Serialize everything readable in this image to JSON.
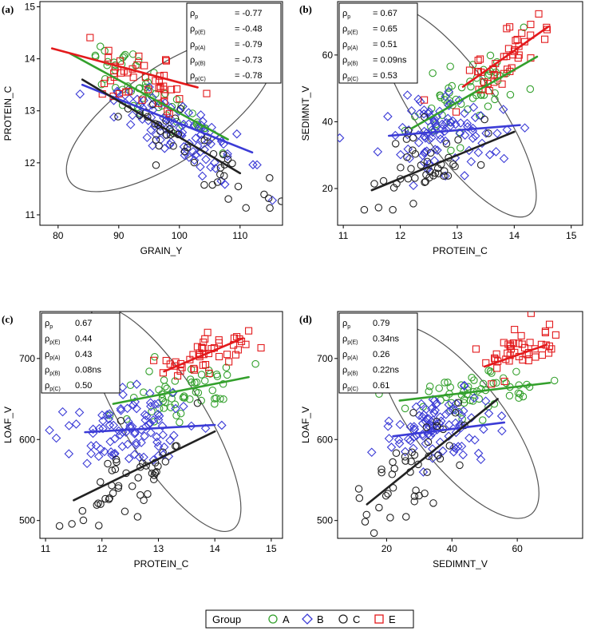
{
  "legend": {
    "title": "Group",
    "items": [
      {
        "label": "A",
        "color": "#33a02c",
        "marker": "circle"
      },
      {
        "label": "B",
        "color": "#3b3bd6",
        "marker": "diamond"
      },
      {
        "label": "C",
        "color": "#222222",
        "marker": "circle"
      },
      {
        "label": "E",
        "color": "#e31a1c",
        "marker": "square"
      }
    ]
  },
  "colors": {
    "A": "#33a02c",
    "B": "#3b3bd6",
    "C": "#222222",
    "E": "#e31a1c",
    "ellipse": "#555555"
  },
  "chart_data": [
    {
      "panel": "(a)",
      "type": "scatter",
      "xlabel": "GRAIN_Y",
      "ylabel": "PROTEIN_C",
      "xlim": [
        77,
        117
      ],
      "ylim": [
        10.8,
        15.1
      ],
      "xticks": [
        80,
        90,
        100,
        110
      ],
      "yticks": [
        11,
        12,
        13,
        14,
        15
      ],
      "stats": [
        {
          "sym": "ρ",
          "sub": "p",
          "value": "= -0.77"
        },
        {
          "sym": "ρ",
          "sub": "p(E)",
          "value": "= -0.48"
        },
        {
          "sym": "ρ",
          "sub": "p(A)",
          "value": "= -0.79"
        },
        {
          "sym": "ρ",
          "sub": "p(B)",
          "value": "= -0.73"
        },
        {
          "sym": "ρ",
          "sub": "p(C)",
          "value": "= -0.78"
        }
      ],
      "ellipse": {
        "cx": 98.5,
        "cy": 12.95,
        "rx": 20,
        "ry": 0.9,
        "angle": -34
      },
      "series": [
        {
          "name": "A",
          "n": 55,
          "xmean": 95,
          "xsd": 5.5,
          "slope": -0.09,
          "intercept": 21.85,
          "resid": 0.3,
          "fit": [
            [
              82,
              14.1
            ],
            [
              108,
              12.45
            ]
          ]
        },
        {
          "name": "B",
          "n": 95,
          "xmean": 100,
          "xsd": 6,
          "slope": -0.055,
          "intercept": 18.1,
          "resid": 0.3,
          "fit": [
            [
              84,
              13.5
            ],
            [
              112,
              12.2
            ]
          ]
        },
        {
          "name": "C",
          "n": 45,
          "xmean": 103,
          "xsd": 6,
          "slope": -0.075,
          "intercept": 19.9,
          "resid": 0.25,
          "fit": [
            [
              84,
              13.6
            ],
            [
              110,
              11.8
            ]
          ]
        },
        {
          "name": "E",
          "n": 45,
          "xmean": 93,
          "xsd": 5,
          "slope": -0.035,
          "intercept": 16.9,
          "resid": 0.3,
          "fit": [
            [
              79,
              14.2
            ],
            [
              103,
              13.45
            ]
          ]
        }
      ]
    },
    {
      "panel": "(b)",
      "type": "scatter",
      "xlabel": "PROTEIN_C",
      "ylabel": "SEDIMNT_V",
      "xlim": [
        10.9,
        15.2
      ],
      "ylim": [
        9,
        76
      ],
      "xticks": [
        11,
        12,
        13,
        14,
        15
      ],
      "yticks": [
        20,
        40,
        60
      ],
      "stats": [
        {
          "sym": "ρ",
          "sub": "p",
          "value": "= 0.67"
        },
        {
          "sym": "ρ",
          "sub": "p(E)",
          "value": "= 0.65"
        },
        {
          "sym": "ρ",
          "sub": "p(A)",
          "value": "= 0.51"
        },
        {
          "sym": "ρ",
          "sub": "p(B)",
          "value": "= 0.09ns"
        },
        {
          "sym": "ρ",
          "sub": "p(C)",
          "value": "= 0.53"
        }
      ],
      "ellipse": {
        "cx": 13.0,
        "cy": 43,
        "rx": 2.2,
        "ry": 12,
        "angle": 55
      },
      "series": [
        {
          "name": "A",
          "n": 55,
          "xmean": 13.2,
          "xsd": 0.5,
          "slope": 10,
          "intercept": -84,
          "resid": 5,
          "fit": [
            [
              12.2,
              38
            ],
            [
              14.4,
              59.5
            ]
          ]
        },
        {
          "name": "B",
          "n": 95,
          "xmean": 12.7,
          "xsd": 0.55,
          "slope": 1.3,
          "intercept": 20.5,
          "resid": 6,
          "fit": [
            [
              11.8,
              35.8
            ],
            [
              14.1,
              39
            ]
          ]
        },
        {
          "name": "C",
          "n": 45,
          "xmean": 12.4,
          "xsd": 0.6,
          "slope": 7,
          "intercept": -60,
          "resid": 5,
          "fit": [
            [
              11.5,
              19.5
            ],
            [
              14.0,
              37
            ]
          ]
        },
        {
          "name": "E",
          "n": 45,
          "xmean": 13.8,
          "xsd": 0.4,
          "slope": 12,
          "intercept": -107,
          "resid": 4,
          "fit": [
            [
              13.1,
              50.5
            ],
            [
              14.6,
              68.5
            ]
          ]
        }
      ]
    },
    {
      "panel": "(c)",
      "type": "scatter",
      "xlabel": "PROTEIN_C",
      "ylabel": "LOAF_V",
      "xlim": [
        10.9,
        15.2
      ],
      "ylim": [
        478,
        758
      ],
      "xticks": [
        11,
        12,
        13,
        14,
        15
      ],
      "yticks": [
        500,
        600,
        700
      ],
      "stats": [
        {
          "sym": "ρ",
          "sub": "p",
          "value": "0.67"
        },
        {
          "sym": "ρ",
          "sub": "p(E)",
          "value": "0.44"
        },
        {
          "sym": "ρ",
          "sub": "p(A)",
          "value": "0.43"
        },
        {
          "sym": "ρ",
          "sub": "p(B)",
          "value": "0.08ns"
        },
        {
          "sym": "ρ",
          "sub": "p(C)",
          "value": "0.50"
        }
      ],
      "ellipse": {
        "cx": 13.1,
        "cy": 625,
        "rx": 2.3,
        "ry": 50,
        "angle": 58
      },
      "series": [
        {
          "name": "A",
          "n": 55,
          "xmean": 13.3,
          "xsd": 0.55,
          "slope": 14,
          "intercept": 470,
          "resid": 18,
          "fit": [
            [
              12.2,
              644
            ],
            [
              14.6,
              677
            ]
          ]
        },
        {
          "name": "B",
          "n": 95,
          "xmean": 12.6,
          "xsd": 0.55,
          "slope": 4,
          "intercept": 562,
          "resid": 22,
          "fit": [
            [
              11.7,
              609
            ],
            [
              14.0,
              618
            ]
          ]
        },
        {
          "name": "C",
          "n": 45,
          "xmean": 12.5,
          "xsd": 0.6,
          "slope": 38,
          "intercept": 78,
          "resid": 25,
          "fit": [
            [
              11.5,
              525
            ],
            [
              14.0,
              610
            ]
          ]
        },
        {
          "name": "E",
          "n": 45,
          "xmean": 13.8,
          "xsd": 0.4,
          "slope": 29,
          "intercept": 305,
          "resid": 14,
          "fit": [
            [
              13.1,
              684
            ],
            [
              14.5,
              725
            ]
          ]
        }
      ]
    },
    {
      "panel": "(d)",
      "type": "scatter",
      "xlabel": "SEDIMNT_V",
      "ylabel": "LOAF_V",
      "xlim": [
        5,
        80
      ],
      "ylim": [
        478,
        758
      ],
      "xticks": [
        20,
        40,
        60
      ],
      "yticks": [
        500,
        600,
        700
      ],
      "stats": [
        {
          "sym": "ρ",
          "sub": "p",
          "value": "0.79"
        },
        {
          "sym": "ρ",
          "sub": "p(E)",
          "value": "0.34ns"
        },
        {
          "sym": "ρ",
          "sub": "p(A)",
          "value": "0.26"
        },
        {
          "sym": "ρ",
          "sub": "p(B)",
          "value": "0.22ns"
        },
        {
          "sym": "ρ",
          "sub": "p(C)",
          "value": "0.61"
        }
      ],
      "ellipse": {
        "cx": 42,
        "cy": 622,
        "rx": 36,
        "ry": 55,
        "angle": 52
      },
      "series": [
        {
          "name": "A",
          "n": 55,
          "xmean": 47,
          "xsd": 10,
          "slope": 0.55,
          "intercept": 632,
          "resid": 15,
          "fit": [
            [
              24,
              648
            ],
            [
              70,
              670
            ]
          ]
        },
        {
          "name": "B",
          "n": 95,
          "xmean": 36,
          "xsd": 8,
          "slope": 0.6,
          "intercept": 596,
          "resid": 22,
          "fit": [
            [
              22,
              604
            ],
            [
              56,
              621
            ]
          ]
        },
        {
          "name": "C",
          "n": 45,
          "xmean": 28,
          "xsd": 9,
          "slope": 3.3,
          "intercept": 470,
          "resid": 25,
          "fit": [
            [
              14,
              520
            ],
            [
              54,
              650
            ]
          ]
        },
        {
          "name": "E",
          "n": 45,
          "xmean": 60,
          "xsd": 7,
          "slope": 1.4,
          "intercept": 625,
          "resid": 14,
          "fit": [
            [
              50,
              690
            ],
            [
              69,
              717
            ]
          ]
        }
      ]
    }
  ]
}
